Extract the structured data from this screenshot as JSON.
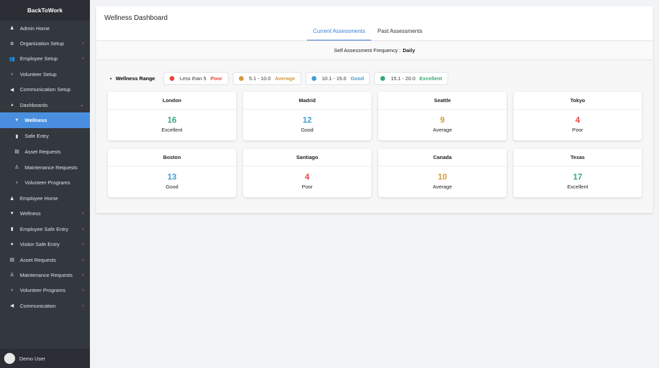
{
  "app": {
    "brand": "BackToWork",
    "user": "Demo User"
  },
  "sidebar": [
    {
      "label": "Admin Home",
      "icon": "user-tie-icon",
      "ch": false,
      "sub": false
    },
    {
      "label": "Organization Setup",
      "icon": "gear-icon",
      "ch": ">",
      "sub": false
    },
    {
      "label": "Employee Setup",
      "icon": "users-icon",
      "ch": ">",
      "sub": false
    },
    {
      "label": "Volunteer Setup",
      "icon": "award-icon",
      "ch": false,
      "sub": false
    },
    {
      "label": "Communication Setup",
      "icon": "megaphone-icon",
      "ch": false,
      "sub": false
    },
    {
      "label": "Dashboards",
      "icon": "pie-chart-icon",
      "ch": "v",
      "sub": false
    },
    {
      "label": "Wellness",
      "icon": "heart-icon",
      "ch": false,
      "sub": true,
      "active": true
    },
    {
      "label": "Safe Entry",
      "icon": "door-icon",
      "ch": false,
      "sub": true
    },
    {
      "label": "Asset Requests",
      "icon": "keyboard-icon",
      "ch": false,
      "sub": true
    },
    {
      "label": "Maintenance Requests",
      "icon": "worker-icon",
      "ch": false,
      "sub": true
    },
    {
      "label": "Volunteer Programs",
      "icon": "award-icon",
      "ch": false,
      "sub": true
    },
    {
      "label": "Employee Home",
      "icon": "user-tie-icon",
      "ch": false,
      "sub": false
    },
    {
      "label": "Wellness",
      "icon": "heart-icon",
      "ch": ">",
      "sub": false
    },
    {
      "label": "Employee Safe Entry",
      "icon": "door-icon",
      "ch": ">",
      "sub": false
    },
    {
      "label": "Visitor Safe Entry",
      "icon": "user-icon",
      "ch": ">",
      "sub": false
    },
    {
      "label": "Asset Requests",
      "icon": "keyboard-icon",
      "ch": ">",
      "sub": false
    },
    {
      "label": "Maintenance Requests",
      "icon": "worker-icon",
      "ch": ">",
      "sub": false
    },
    {
      "label": "Volunteer Programs",
      "icon": "award-icon",
      "ch": ">",
      "sub": false
    },
    {
      "label": "Communication",
      "icon": "megaphone-icon",
      "ch": ">",
      "sub": false
    }
  ],
  "header": {
    "title": "Wellness Dashboard",
    "tabs": [
      "Current Assessments",
      "Past Assessments"
    ]
  },
  "frequency": {
    "label": "Self Assessment Frequency :",
    "value": "Daily"
  },
  "range": {
    "label": "Wellness Range",
    "chips": [
      {
        "range": "Less than 5",
        "level": "Poor",
        "color": "#e8453c"
      },
      {
        "range": "5.1 - 10.0",
        "level": "Average",
        "color": "#d49a3c"
      },
      {
        "range": "10.1 - 15.0",
        "level": "Good",
        "color": "#3f9fd2"
      },
      {
        "range": "15.1 - 20.0",
        "level": "Excellent",
        "color": "#3aa874"
      }
    ]
  },
  "cards": [
    {
      "city": "London",
      "value": "16",
      "status": "Excellent",
      "color": "#3aa874"
    },
    {
      "city": "Madrid",
      "value": "12",
      "status": "Good",
      "color": "#3f9fd2"
    },
    {
      "city": "Seattle",
      "value": "9",
      "status": "Average",
      "color": "#d49a3c"
    },
    {
      "city": "Tokyo",
      "value": "4",
      "status": "Poor",
      "color": "#e8453c"
    },
    {
      "city": "Boston",
      "value": "13",
      "status": "Good",
      "color": "#3f9fd2"
    },
    {
      "city": "Santiago",
      "value": "4",
      "status": "Poor",
      "color": "#e8453c"
    },
    {
      "city": "Canada",
      "value": "10",
      "status": "Average",
      "color": "#d49a3c"
    },
    {
      "city": "Texas",
      "value": "17",
      "status": "Excellent",
      "color": "#3aa874"
    }
  ]
}
